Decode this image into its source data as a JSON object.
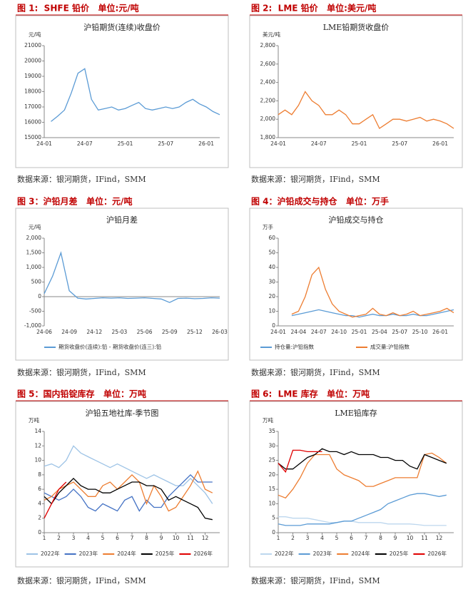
{
  "chart_data": [
    {
      "type": "line",
      "caption": "图 1:  SHFE 铅价   单位:元/吨",
      "title": "沪铅期货(连续)收盘价",
      "y_unit": "元/吨",
      "source": "数据来源：银河期货，IFind，SMM",
      "categories": [
        "24-01",
        null,
        null,
        null,
        null,
        null,
        "24-07",
        null,
        null,
        null,
        null,
        null,
        "25-01",
        null,
        null,
        null,
        null,
        null,
        "25-07",
        null,
        null,
        null,
        null,
        null,
        "26-01",
        null,
        null
      ],
      "values": [
        null,
        16050,
        16400,
        16800,
        17900,
        19200,
        19500,
        17500,
        16800,
        16900,
        17000,
        16800,
        16900,
        17100,
        17300,
        16900,
        16800,
        16900,
        17000,
        16900,
        17000,
        17300,
        17500,
        17200,
        17000,
        16700,
        16500
      ],
      "color": "#5b9bd5",
      "ylim": [
        15000,
        21000
      ],
      "yticks": [
        15000,
        16000,
        17000,
        18000,
        19000,
        20000,
        21000
      ]
    },
    {
      "type": "line",
      "caption": "图 2:  LME 铅价   单位:美元/吨",
      "title": "LME铅期货收盘价",
      "y_unit": "美元/吨",
      "source": "数据来源：银河期货，IFind，SMM",
      "categories": [
        "24-01",
        null,
        null,
        null,
        null,
        null,
        "24-07",
        null,
        null,
        null,
        null,
        null,
        "25-01",
        null,
        null,
        null,
        null,
        null,
        "25-07",
        null,
        null,
        null,
        null,
        null,
        "26-01",
        null,
        null
      ],
      "values": [
        2050,
        2100,
        2050,
        2150,
        2300,
        2200,
        2150,
        2050,
        2050,
        2100,
        2050,
        1950,
        1950,
        2000,
        2050,
        1900,
        1950,
        2000,
        2000,
        1980,
        2000,
        2020,
        1980,
        2000,
        1980,
        1950,
        1900
      ],
      "color": "#ed7d31",
      "ylim": [
        1800,
        2800
      ],
      "yticks": [
        {
          "value": 1800,
          "label": "1,800"
        },
        {
          "value": 2000,
          "label": "2,000"
        },
        {
          "value": 2200,
          "label": "2,200"
        },
        {
          "value": 2400,
          "label": "2,400"
        },
        {
          "value": 2600,
          "label": "2,600"
        },
        {
          "value": 2800,
          "label": "2,800"
        }
      ]
    },
    {
      "type": "line",
      "caption": "图 3：沪铅月差   单位：元/吨",
      "title": "沪铅月差",
      "y_unit": "元/吨",
      "source": "数据来源：银河期货，IFind，SMM",
      "categories": [
        "24-06",
        null,
        null,
        "24-09",
        null,
        null,
        "24-12",
        null,
        null,
        "25-03",
        null,
        null,
        "25-06",
        null,
        null,
        "25-09",
        null,
        null,
        "25-12",
        null,
        null,
        "26-03"
      ],
      "series": [
        {
          "name": "期货收盘价(连续):铅 - 期货收盘价(连三):铅",
          "color": "#5b9bd5",
          "values": [
            100,
            700,
            1500,
            200,
            -50,
            -80,
            -60,
            -40,
            -50,
            -40,
            -60,
            -50,
            -40,
            -60,
            -80,
            -200,
            -60,
            -50,
            -70,
            -60,
            -40,
            -50
          ]
        }
      ],
      "ylim": [
        -1000,
        2000
      ],
      "yticks": [
        {
          "value": -1000,
          "label": "-1,000"
        },
        -500,
        0,
        500,
        {
          "value": 1000,
          "label": "1,000"
        },
        {
          "value": 1500,
          "label": "1,500"
        },
        {
          "value": 2000,
          "label": "2,000"
        }
      ]
    },
    {
      "type": "line",
      "caption": "图 4：沪铅成交与持仓   单位：万手",
      "title": "沪铅成交与持仓",
      "y_unit": "万手",
      "source": "数据来源：银河期货，IFind，SMM",
      "categories": [
        "24-01",
        null,
        null,
        "24-04",
        null,
        null,
        "24-07",
        null,
        null,
        "24-10",
        null,
        null,
        "25-01",
        null,
        null,
        "25-04",
        null,
        null,
        "25-07",
        null,
        null,
        "25-10",
        null,
        null,
        "26-01",
        null,
        null
      ],
      "series": [
        {
          "name": "持仓量:沪铅指数",
          "color": "#5b9bd5",
          "values": [
            null,
            null,
            7,
            8,
            9,
            10,
            11,
            10,
            9,
            8,
            7,
            7,
            6,
            7,
            8,
            7,
            7,
            8,
            7,
            7,
            8,
            7,
            7,
            8,
            9,
            10,
            11
          ]
        },
        {
          "name": "成交量:沪铅指数",
          "color": "#ed7d31",
          "values": [
            null,
            null,
            8,
            10,
            20,
            35,
            40,
            25,
            15,
            10,
            8,
            6,
            7,
            8,
            12,
            8,
            7,
            9,
            7,
            8,
            10,
            7,
            8,
            9,
            10,
            12,
            9
          ]
        }
      ],
      "ylim": [
        0,
        60
      ],
      "yticks": [
        0,
        10,
        20,
        30,
        40,
        50,
        60
      ]
    },
    {
      "type": "line",
      "caption": "图 5：国内铅锭库存   单位：万吨",
      "title": "沪铅五地社库-季节图",
      "y_unit": "万吨",
      "source": "数据来源：银河期货，IFind，SMM",
      "x": [
        1,
        1.5,
        2,
        2.5,
        3,
        3.5,
        4,
        4.5,
        5,
        5.5,
        6,
        6.5,
        7,
        7.5,
        8,
        8.5,
        9,
        9.5,
        10,
        10.5,
        11,
        11.5,
        12,
        12.5
      ],
      "series": [
        {
          "name": "2022年",
          "color": "#9dc3e6",
          "values": [
            9.2,
            9.5,
            9,
            10,
            12,
            11,
            10.5,
            10,
            9.5,
            9,
            9.5,
            9,
            8.5,
            8,
            7.5,
            8,
            7.5,
            7,
            6.5,
            6.5,
            7.5,
            6.5,
            5.5,
            4
          ]
        },
        {
          "name": "2023年",
          "color": "#4472c4",
          "values": [
            5.5,
            5,
            4.5,
            5,
            6,
            5,
            3.5,
            3,
            4,
            3.5,
            3,
            4.5,
            5,
            3,
            4.5,
            3.5,
            3.5,
            5,
            6,
            7,
            8,
            7,
            7,
            7
          ]
        },
        {
          "name": "2024年",
          "color": "#ed7d31",
          "values": [
            4.5,
            5,
            6,
            6.5,
            7,
            6,
            5,
            5,
            6.5,
            7,
            6,
            7,
            8,
            7,
            4,
            6.5,
            5,
            3,
            3.5,
            5,
            6.5,
            8.5,
            6,
            5.5
          ]
        },
        {
          "name": "2025年",
          "color": "#000000",
          "values": [
            5,
            4,
            5.5,
            6.5,
            7.5,
            6.5,
            6,
            6,
            5.5,
            5.5,
            6,
            6.5,
            7,
            7,
            6.5,
            6.5,
            6,
            4.5,
            5,
            4.5,
            4,
            3.5,
            2,
            1.8
          ]
        },
        {
          "name": "2026年",
          "color": "#e00000",
          "values": [
            2,
            4,
            6,
            7,
            null,
            null,
            null,
            null,
            null,
            null,
            null,
            null,
            null,
            null,
            null,
            null,
            null,
            null,
            null,
            null,
            null,
            null,
            null,
            null
          ]
        }
      ],
      "xlim": [
        1,
        13
      ],
      "xticks": [
        1,
        2,
        3,
        4,
        5,
        6,
        7,
        8,
        9,
        10,
        11,
        12
      ],
      "ylim": [
        0,
        14
      ],
      "yticks": [
        0,
        2,
        4,
        6,
        8,
        10,
        12,
        14
      ]
    },
    {
      "type": "line",
      "caption": "图 6:  LME 库存   单位：万吨",
      "title": "LME铅库存",
      "y_unit": "万吨",
      "source": "数据来源：银河期货，IFind，SMM",
      "x": [
        1,
        1.5,
        2,
        2.5,
        3,
        3.5,
        4,
        4.5,
        5,
        5.5,
        6,
        6.5,
        7,
        7.5,
        8,
        8.5,
        9,
        9.5,
        10,
        10.5,
        11,
        11.5,
        12,
        12.5
      ],
      "series": [
        {
          "name": "2022年",
          "color": "#bdd7ee",
          "values": [
            5.5,
            5.5,
            5,
            5,
            5,
            4.5,
            4,
            3.5,
            3.5,
            4,
            4,
            3.5,
            3.5,
            3.5,
            3.5,
            3,
            3,
            3,
            3,
            2.8,
            2.5,
            2.5,
            2.5,
            2.5
          ]
        },
        {
          "name": "2023年",
          "color": "#5b9bd5",
          "values": [
            3,
            2.5,
            2.5,
            2.5,
            3,
            3,
            3,
            3,
            3.5,
            4,
            4,
            5,
            6,
            7,
            8,
            10,
            11,
            12,
            13,
            13.5,
            13.5,
            13,
            12.5,
            13
          ]
        },
        {
          "name": "2024年",
          "color": "#ed7d31",
          "values": [
            13,
            12,
            15,
            19,
            24,
            27,
            27,
            27,
            22,
            20,
            19,
            18,
            16,
            16,
            17,
            18,
            19,
            19,
            19,
            19,
            27,
            27.5,
            26,
            24
          ]
        },
        {
          "name": "2025年",
          "color": "#000000",
          "values": [
            24,
            22,
            22,
            24,
            26,
            27,
            29,
            28,
            28,
            27,
            28,
            27,
            27,
            27,
            26,
            26,
            25,
            25,
            23,
            22,
            27,
            26,
            25,
            24
          ]
        },
        {
          "name": "2026年",
          "color": "#e00000",
          "values": [
            24,
            21,
            28.5,
            28.5,
            28,
            28,
            28,
            null,
            null,
            null,
            null,
            null,
            null,
            null,
            null,
            null,
            null,
            null,
            null,
            null,
            null,
            null,
            null,
            null
          ]
        }
      ],
      "xlim": [
        1,
        13
      ],
      "xticks": [
        1,
        2,
        3,
        4,
        5,
        6,
        7,
        8,
        9,
        10,
        11,
        12
      ],
      "ylim": [
        0,
        35
      ],
      "yticks": [
        0,
        5,
        10,
        15,
        20,
        25,
        30,
        35
      ]
    }
  ]
}
